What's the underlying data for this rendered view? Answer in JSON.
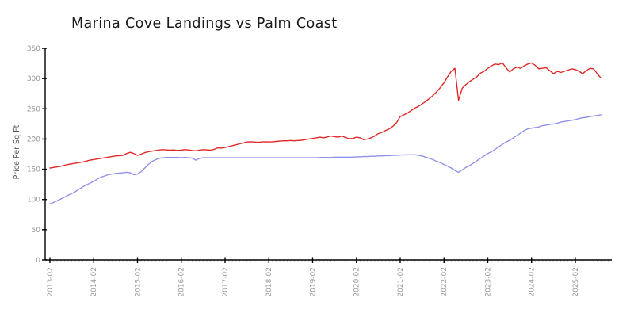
{
  "page": {
    "background": "#ffffff"
  },
  "chart_data": {
    "type": "line",
    "title": "Marina Cove Landings vs Palm Coast",
    "xlabel": "",
    "ylabel": "Price Per Sq Ft",
    "x_start": "2013-02",
    "x_frequency": "monthly",
    "x_tick_labels": [
      "2013-02",
      "2014-02",
      "2015-02",
      "2016-02",
      "2017-02",
      "2018-02",
      "2019-02",
      "2020-02",
      "2021-02",
      "2022-02",
      "2023-02",
      "2024-02",
      "2025-02"
    ],
    "y_ticks": [
      0,
      50,
      100,
      150,
      200,
      250,
      300,
      350
    ],
    "ylim": [
      0,
      350
    ],
    "grid": false,
    "legend": "none",
    "axis_color": "#000000",
    "tick_label_color": "#999999",
    "minor_tick_color": "#cccccc",
    "ylabel_color": "#555555",
    "series": [
      {
        "name": "Marina Cove Landings",
        "color": "#e02828",
        "values": [
          152,
          153,
          154,
          155,
          156.5,
          158,
          159,
          160,
          161,
          162,
          163.5,
          165,
          166,
          167,
          168,
          169,
          170,
          171,
          172,
          172.5,
          173,
          176,
          178,
          176,
          173,
          175,
          177.5,
          179,
          180,
          181,
          182,
          182.5,
          182,
          181.5,
          182,
          181,
          181.5,
          182.5,
          182,
          181,
          180.5,
          181.5,
          182.5,
          182,
          181.5,
          183,
          185.5,
          185,
          186,
          187.5,
          189,
          190.5,
          192,
          193.5,
          195,
          195.5,
          195,
          194.5,
          195,
          195.5,
          195,
          195.5,
          196,
          196.5,
          197,
          197,
          197.5,
          197,
          197.5,
          198,
          199,
          200,
          201,
          202,
          203,
          202,
          203.5,
          205,
          204,
          203,
          205,
          202.5,
          200.5,
          201,
          203,
          202,
          199,
          200,
          202,
          205,
          209,
          211,
          214,
          217,
          221,
          227,
          237,
          240,
          243,
          247,
          251,
          254,
          258,
          262,
          267,
          272,
          278,
          285,
          293,
          303,
          312,
          317,
          264,
          284,
          290,
          295,
          299,
          303,
          309,
          312,
          317,
          321,
          324,
          323,
          326,
          318,
          311,
          316,
          319,
          317,
          321,
          324,
          326,
          322,
          316,
          317,
          318,
          313,
          308,
          312,
          310,
          312,
          314,
          316,
          315,
          312,
          308,
          313,
          317,
          316,
          308,
          301
        ]
      },
      {
        "name": "Palm Coast",
        "color": "#9191e8",
        "values": [
          93,
          95,
          98,
          101,
          104,
          107,
          110,
          113,
          117,
          121,
          124,
          127,
          130,
          134,
          137,
          139,
          141,
          142,
          143,
          143.5,
          144,
          145,
          144,
          141,
          142,
          146,
          152,
          158,
          163,
          166,
          168,
          169,
          169.5,
          169.5,
          169.5,
          169.5,
          169,
          169.5,
          169,
          168.5,
          165,
          168,
          169,
          169,
          169,
          169,
          169,
          169,
          169,
          169,
          169,
          169,
          169,
          169,
          169,
          169,
          169,
          169,
          169,
          169,
          169,
          169,
          169,
          169,
          169,
          169,
          169,
          169,
          169,
          169,
          169,
          169,
          169,
          169,
          169.5,
          169.5,
          169.5,
          169.5,
          170,
          170,
          170,
          170,
          170,
          170,
          170.5,
          170.5,
          171,
          171,
          171.5,
          171.5,
          172,
          172,
          172.5,
          172.5,
          173,
          173,
          173.5,
          173.5,
          174,
          174,
          174,
          173,
          172,
          170,
          168,
          166,
          163,
          161,
          158,
          155,
          152,
          148,
          145,
          149,
          153,
          156,
          160,
          164,
          168,
          172,
          176,
          179,
          183,
          187,
          191,
          195,
          198,
          202,
          206,
          210,
          214,
          217,
          218,
          219,
          220,
          222,
          223,
          224,
          225,
          226,
          228,
          229,
          230,
          231,
          232,
          234,
          235,
          236,
          237,
          238,
          239,
          240
        ]
      }
    ]
  }
}
